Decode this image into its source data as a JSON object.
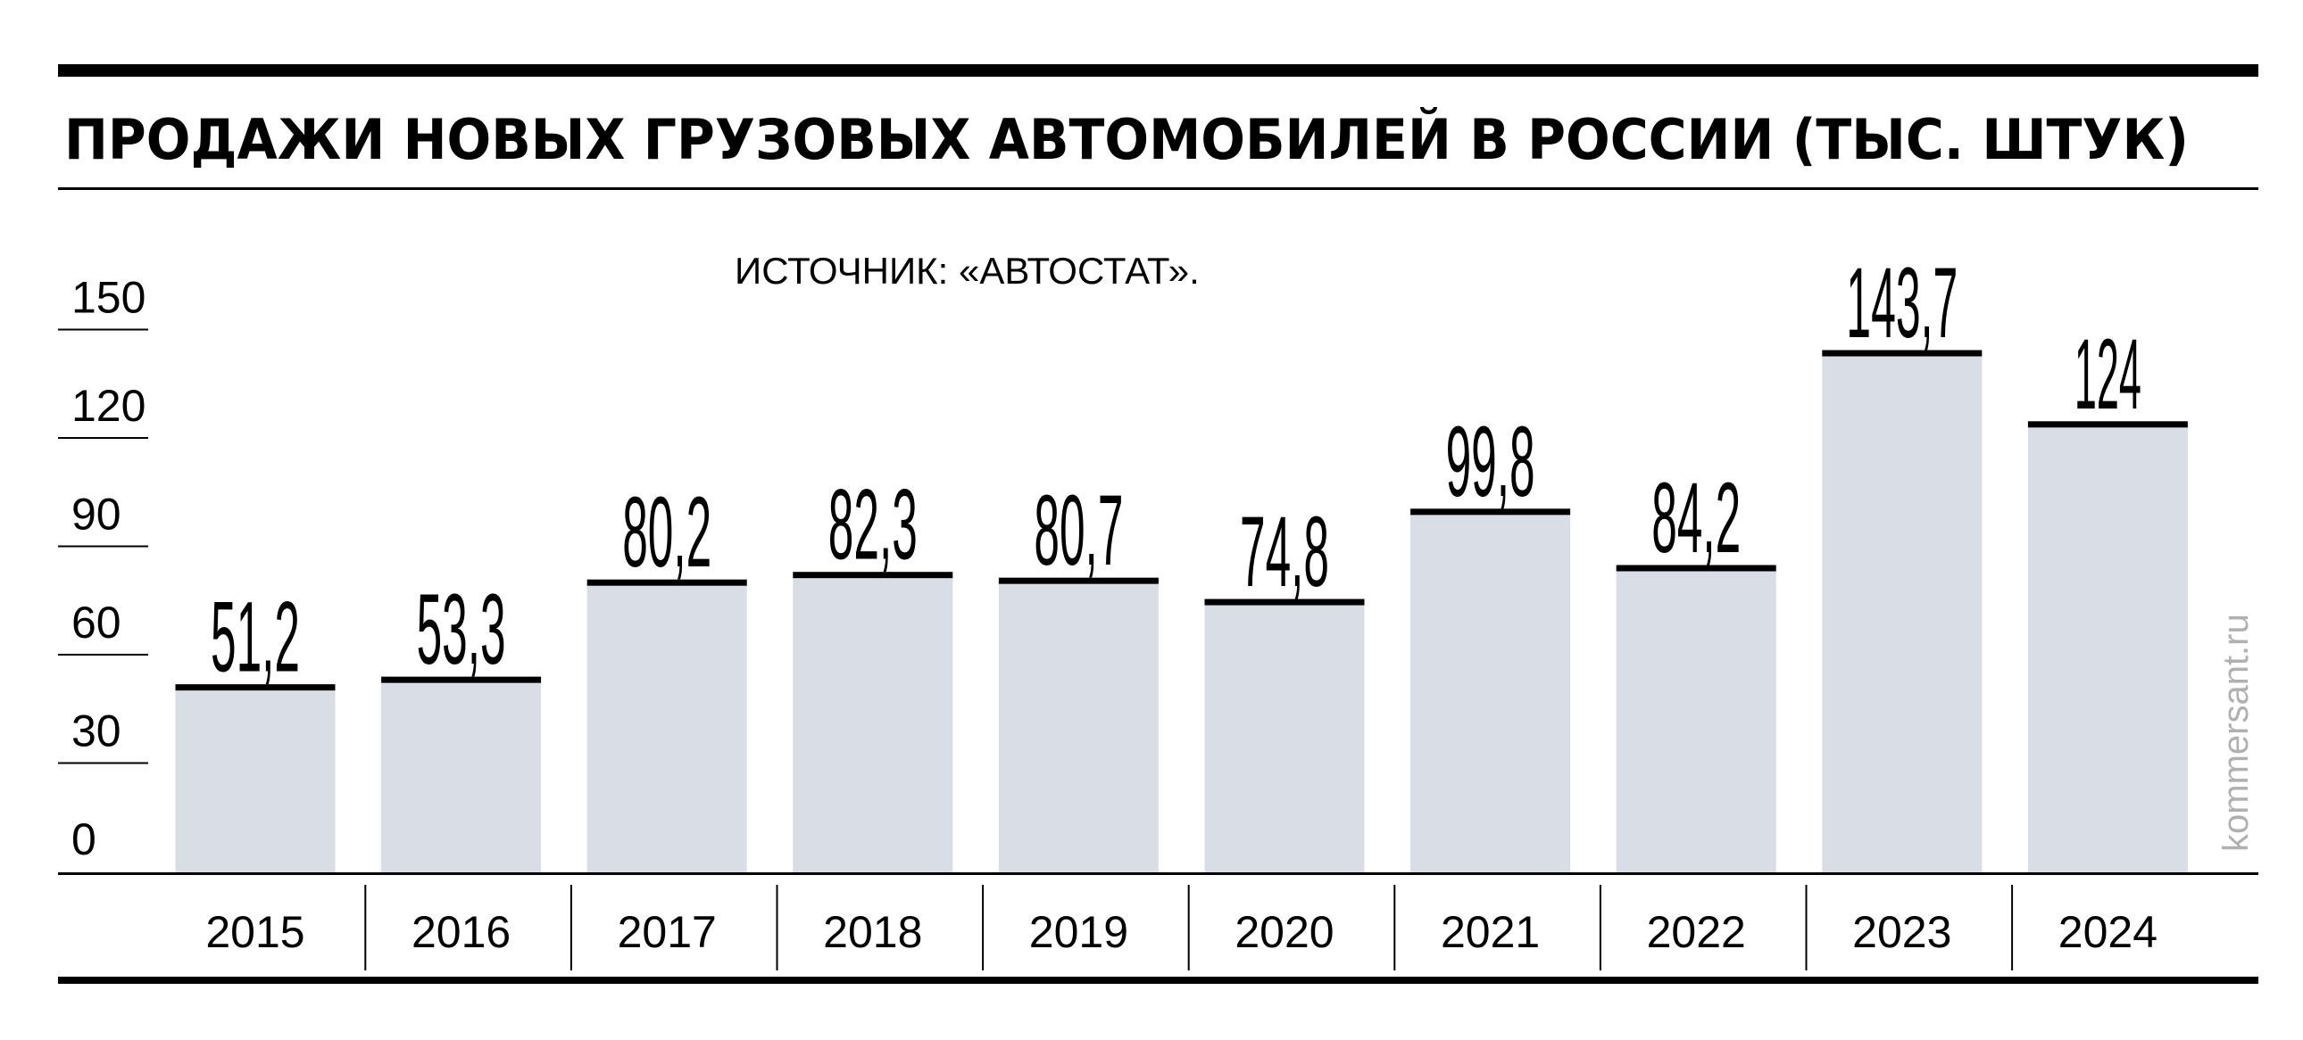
{
  "chart_data": {
    "type": "bar",
    "title": "ПРОДАЖИ НОВЫХ ГРУЗОВЫХ АВТОМОБИЛЕЙ В РОССИИ (ТЫС. ШТУК)",
    "source": "ИСТОЧНИК: «АВТОСТАТ».",
    "categories": [
      "2015",
      "2016",
      "2017",
      "2018",
      "2019",
      "2020",
      "2021",
      "2022",
      "2023",
      "2024"
    ],
    "values": [
      51.2,
      53.3,
      80.2,
      82.3,
      80.7,
      74.8,
      99.8,
      84.2,
      143.7,
      124
    ],
    "value_labels": [
      "51,2",
      "53,3",
      "80,2",
      "82,3",
      "80,7",
      "74,8",
      "99,8",
      "84,2",
      "143,7",
      "124"
    ],
    "yticks": [
      0,
      30,
      60,
      90,
      120,
      150
    ],
    "ylim": [
      0,
      150
    ],
    "xlabel": "",
    "ylabel": "",
    "grid": false,
    "bar_color": "#d8dde6",
    "bar_cap_color": "#000000"
  },
  "watermark": "kommersant.ru"
}
